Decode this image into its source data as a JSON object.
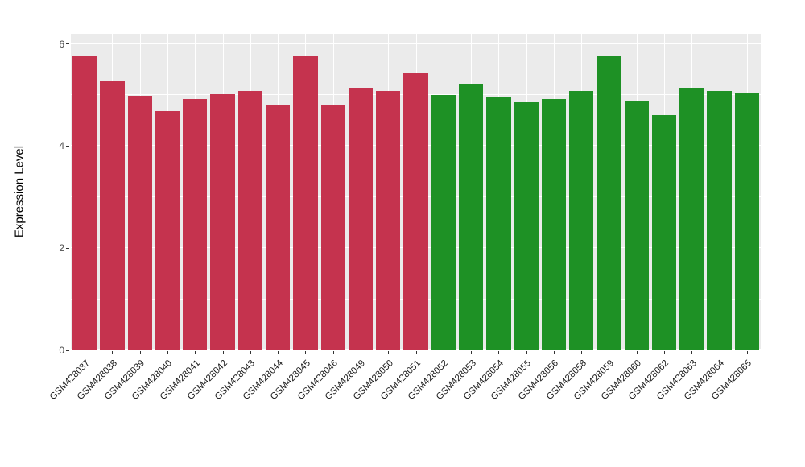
{
  "chart_data": {
    "type": "bar",
    "title": "",
    "xlabel": "",
    "ylabel": "Expression Level",
    "ylim": [
      0,
      6.2
    ],
    "yticks": [
      0,
      2,
      4,
      6
    ],
    "yticks_minor": [
      1,
      3,
      5
    ],
    "grid": "on",
    "legend": "none",
    "categories": [
      "GSM428037",
      "GSM428038",
      "GSM428039",
      "GSM428040",
      "GSM428041",
      "GSM428042",
      "GSM428043",
      "GSM428044",
      "GSM428045",
      "GSM428046",
      "GSM428049",
      "GSM428050",
      "GSM428051",
      "GSM428052",
      "GSM428053",
      "GSM428054",
      "GSM428055",
      "GSM428056",
      "GSM428058",
      "GSM428059",
      "GSM428060",
      "GSM428062",
      "GSM428063",
      "GSM428064",
      "GSM428065"
    ],
    "values": [
      5.78,
      5.28,
      4.98,
      4.68,
      4.93,
      5.02,
      5.08,
      4.8,
      5.76,
      4.81,
      5.15,
      5.08,
      5.43,
      5.0,
      5.22,
      4.95,
      4.86,
      4.93,
      5.08,
      5.78,
      4.88,
      4.6,
      5.15,
      5.08,
      5.03
    ],
    "groups": [
      {
        "name": "group-red",
        "color": "#C5334E",
        "count": 13
      },
      {
        "name": "group-green",
        "color": "#1E9125",
        "count": 12
      }
    ]
  },
  "colors": {
    "panel_background": "#EBEBEB",
    "gridline": "#FFFFFF",
    "figure_background": "#FFFFFF",
    "tick_text": "#4D4D4D",
    "label_text": "#1a1a1a"
  }
}
